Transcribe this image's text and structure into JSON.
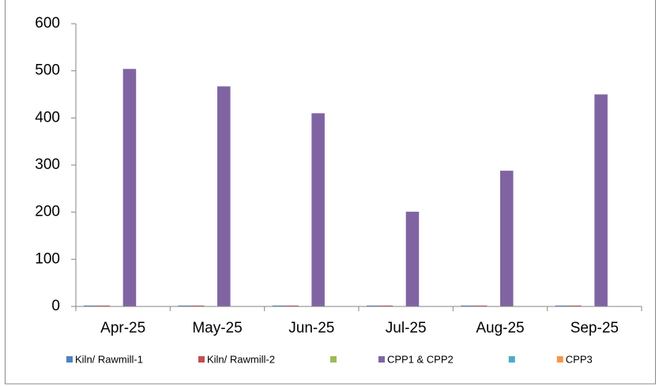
{
  "chart_data": {
    "type": "bar",
    "categories": [
      "Apr-25",
      "May-25",
      "Jun-25",
      "Jul-25",
      "Aug-25",
      "Sep-25"
    ],
    "series": [
      {
        "name": "Kiln/ Rawmill-1",
        "color": "#4f81bd",
        "values": [
          2,
          2,
          2,
          2,
          2,
          2
        ]
      },
      {
        "name": "Kiln/ Rawmill-2",
        "color": "#c0504d",
        "values": [
          2,
          2,
          2,
          2,
          2,
          2
        ]
      },
      {
        "name": null,
        "color": "#9bbb59",
        "values": [
          0,
          0,
          0,
          0,
          0,
          0
        ]
      },
      {
        "name": "CPP1 & CPP2",
        "color": "#8064a2",
        "values": [
          504,
          467,
          410,
          201,
          288,
          450
        ]
      },
      {
        "name": null,
        "color": "#4bacc6",
        "values": [
          0,
          0,
          0,
          0,
          0,
          0
        ]
      },
      {
        "name": "CPP3",
        "color": "#f79646",
        "values": [
          0,
          0,
          0,
          0,
          0,
          0
        ]
      }
    ],
    "ylim": [
      0,
      600
    ],
    "yticks": [
      0,
      100,
      200,
      300,
      400,
      500,
      600
    ],
    "legend": "bottom"
  }
}
